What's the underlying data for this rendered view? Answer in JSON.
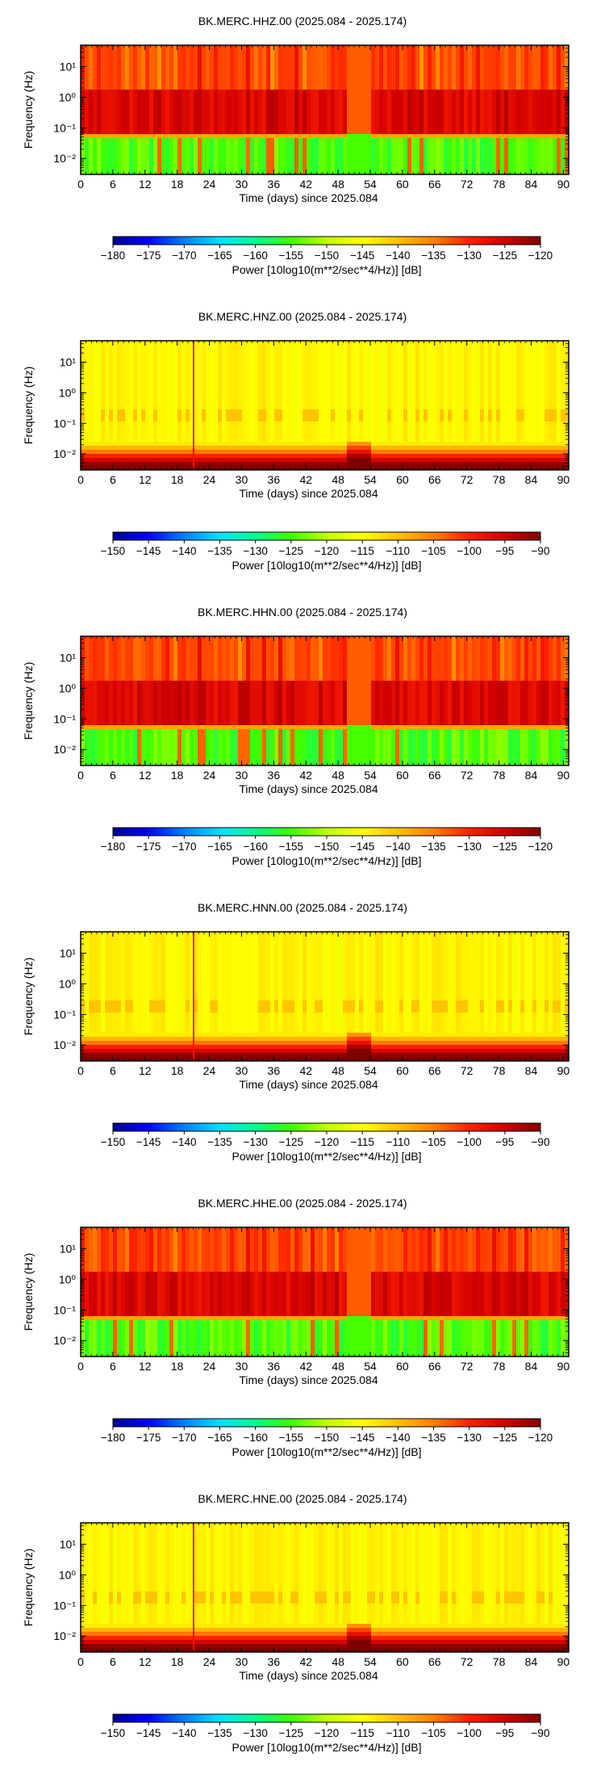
{
  "figure": {
    "colors": {
      "scale": [
        "#00008f",
        "#0000ff",
        "#0080ff",
        "#00e0ff",
        "#00ff90",
        "#40ff00",
        "#c0ff00",
        "#ffff00",
        "#ffc000",
        "#ff8000",
        "#ff2000",
        "#d00000",
        "#800000"
      ]
    }
  },
  "chart_data": [
    {
      "type": "heatmap",
      "title": "BK.MERC.HHZ.00 (2025.084 - 2025.174)",
      "xlabel": "Time (days) since 2025.084",
      "ylabel": "Frequency (Hz)",
      "x_ticks": [
        "0",
        "6",
        "12",
        "18",
        "24",
        "30",
        "36",
        "42",
        "48",
        "54",
        "60",
        "66",
        "72",
        "78",
        "84",
        "90"
      ],
      "y_ticks": [
        "10¹",
        "10⁰",
        "10⁻¹",
        "10⁻²"
      ],
      "y_scale": "log",
      "xlim": [
        0,
        91
      ],
      "ylim": [
        0.003,
        50
      ],
      "colorbar_label": "Power [10log10(m**2/sec**4/Hz)] [dB]",
      "colorbar_ticks": [
        "−180",
        "−175",
        "−170",
        "−165",
        "−160",
        "−155",
        "−150",
        "−145",
        "−140",
        "−135",
        "−130",
        "−125",
        "−120"
      ],
      "clim": [
        -180,
        -120
      ],
      "pattern": "broadband",
      "gap_days": [
        49.5,
        54
      ]
    },
    {
      "type": "heatmap",
      "title": "BK.MERC.HNZ.00 (2025.084 - 2025.174)",
      "xlabel": "Time (days) since 2025.084",
      "ylabel": "Frequency (Hz)",
      "x_ticks": [
        "0",
        "6",
        "12",
        "18",
        "24",
        "30",
        "36",
        "42",
        "48",
        "54",
        "60",
        "66",
        "72",
        "78",
        "84",
        "90"
      ],
      "y_ticks": [
        "10¹",
        "10⁰",
        "10⁻¹",
        "10⁻²"
      ],
      "y_scale": "log",
      "xlim": [
        0,
        91
      ],
      "ylim": [
        0.003,
        50
      ],
      "colorbar_label": "Power [10log10(m**2/sec**4/Hz)] [dB]",
      "colorbar_ticks": [
        "−150",
        "−145",
        "−140",
        "−135",
        "−130",
        "−125",
        "−120",
        "−115",
        "−110",
        "−105",
        "−100",
        "−95",
        "−90"
      ],
      "clim": [
        -150,
        -90
      ],
      "pattern": "strong",
      "gap_days": [
        49.5,
        54
      ]
    },
    {
      "type": "heatmap",
      "title": "BK.MERC.HHN.00 (2025.084 - 2025.174)",
      "xlabel": "Time (days) since 2025.084",
      "ylabel": "Frequency (Hz)",
      "x_ticks": [
        "0",
        "6",
        "12",
        "18",
        "24",
        "30",
        "36",
        "42",
        "48",
        "54",
        "60",
        "66",
        "72",
        "78",
        "84",
        "90"
      ],
      "y_ticks": [
        "10¹",
        "10⁰",
        "10⁻¹",
        "10⁻²"
      ],
      "y_scale": "log",
      "xlim": [
        0,
        91
      ],
      "ylim": [
        0.003,
        50
      ],
      "colorbar_label": "Power [10log10(m**2/sec**4/Hz)] [dB]",
      "colorbar_ticks": [
        "−180",
        "−175",
        "−170",
        "−165",
        "−160",
        "−155",
        "−150",
        "−145",
        "−140",
        "−135",
        "−130",
        "−125",
        "−120"
      ],
      "clim": [
        -180,
        -120
      ],
      "pattern": "broadband",
      "gap_days": [
        49.5,
        54
      ]
    },
    {
      "type": "heatmap",
      "title": "BK.MERC.HNN.00 (2025.084 - 2025.174)",
      "xlabel": "Time (days) since 2025.084",
      "ylabel": "Frequency (Hz)",
      "x_ticks": [
        "0",
        "6",
        "12",
        "18",
        "24",
        "30",
        "36",
        "42",
        "48",
        "54",
        "60",
        "66",
        "72",
        "78",
        "84",
        "90"
      ],
      "y_ticks": [
        "10¹",
        "10⁰",
        "10⁻¹",
        "10⁻²"
      ],
      "y_scale": "log",
      "xlim": [
        0,
        91
      ],
      "ylim": [
        0.003,
        50
      ],
      "colorbar_label": "Power [10log10(m**2/sec**4/Hz)] [dB]",
      "colorbar_ticks": [
        "−150",
        "−145",
        "−140",
        "−135",
        "−130",
        "−125",
        "−120",
        "−115",
        "−110",
        "−105",
        "−100",
        "−95",
        "−90"
      ],
      "clim": [
        -150,
        -90
      ],
      "pattern": "strong",
      "gap_days": [
        49.5,
        54
      ]
    },
    {
      "type": "heatmap",
      "title": "BK.MERC.HHE.00 (2025.084 - 2025.174)",
      "xlabel": "Time (days) since 2025.084",
      "ylabel": "Frequency (Hz)",
      "x_ticks": [
        "0",
        "6",
        "12",
        "18",
        "24",
        "30",
        "36",
        "42",
        "48",
        "54",
        "60",
        "66",
        "72",
        "78",
        "84",
        "90"
      ],
      "y_ticks": [
        "10¹",
        "10⁰",
        "10⁻¹",
        "10⁻²"
      ],
      "y_scale": "log",
      "xlim": [
        0,
        91
      ],
      "ylim": [
        0.003,
        50
      ],
      "colorbar_label": "Power [10log10(m**2/sec**4/Hz)] [dB]",
      "colorbar_ticks": [
        "−180",
        "−175",
        "−170",
        "−165",
        "−160",
        "−155",
        "−150",
        "−145",
        "−140",
        "−135",
        "−130",
        "−125",
        "−120"
      ],
      "clim": [
        -180,
        -120
      ],
      "pattern": "broadband",
      "gap_days": [
        49.5,
        54
      ]
    },
    {
      "type": "heatmap",
      "title": "BK.MERC.HNE.00 (2025.084 - 2025.174)",
      "xlabel": "Time (days) since 2025.084",
      "ylabel": "Frequency (Hz)",
      "x_ticks": [
        "0",
        "6",
        "12",
        "18",
        "24",
        "30",
        "36",
        "42",
        "48",
        "54",
        "60",
        "66",
        "72",
        "78",
        "84",
        "90"
      ],
      "y_ticks": [
        "10¹",
        "10⁰",
        "10⁻¹",
        "10⁻²"
      ],
      "y_scale": "log",
      "xlim": [
        0,
        91
      ],
      "ylim": [
        0.003,
        50
      ],
      "colorbar_label": "Power [10log10(m**2/sec**4/Hz)] [dB]",
      "colorbar_ticks": [
        "−150",
        "−145",
        "−140",
        "−135",
        "−130",
        "−125",
        "−120",
        "−115",
        "−110",
        "−105",
        "−100",
        "−95",
        "−90"
      ],
      "clim": [
        -150,
        -90
      ],
      "pattern": "strong",
      "gap_days": [
        49.5,
        54
      ]
    }
  ]
}
